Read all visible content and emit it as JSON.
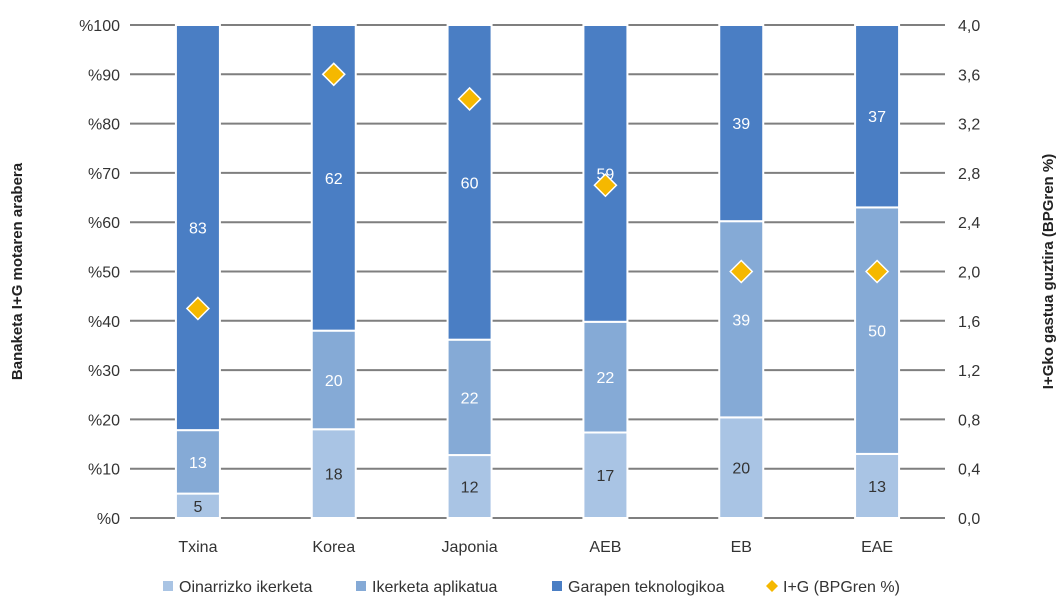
{
  "chart_data": {
    "type": "bar",
    "stacked": true,
    "categories": [
      "Txina",
      "Korea",
      "Japonia",
      "AEB",
      "EB",
      "EAE"
    ],
    "series": [
      {
        "name": "Oinarrizko ikerketa",
        "values": [
          5,
          18,
          12,
          17,
          20,
          13
        ],
        "color": "#a9c4e4"
      },
      {
        "name": "Ikerketa aplikatua",
        "values": [
          13,
          20,
          22,
          22,
          39,
          50
        ],
        "color": "#85aad6"
      },
      {
        "name": "Garapen teknologikoa",
        "values": [
          83,
          62,
          60,
          59,
          39,
          37
        ],
        "color": "#4a7ec4"
      }
    ],
    "secondary_series": {
      "name": "I+G (BPGren %)",
      "type": "scatter",
      "marker": "diamond",
      "values": [
        1.7,
        3.6,
        3.4,
        2.7,
        2.0,
        2.0
      ],
      "color": "#f5b800"
    },
    "ylabel": "Banaketa I+G motaren arabera",
    "y2label": "I+Gko gastua guztira (BPGren %)",
    "ylim": [
      0,
      100
    ],
    "y2lim": [
      0,
      4.0
    ],
    "yticks": [
      "%0",
      "%10",
      "%20",
      "%30",
      "%40",
      "%50",
      "%60",
      "%70",
      "%80",
      "%90",
      "%100"
    ],
    "y2ticks": [
      "0,0",
      "0,4",
      "0,8",
      "1,2",
      "1,6",
      "2,0",
      "2,4",
      "2,8",
      "3,2",
      "3,6",
      "4,0"
    ],
    "grid": true,
    "legend_position": "bottom",
    "legend": [
      "Oinarrizko ikerketa",
      "Ikerketa aplikatua",
      "Garapen teknologikoa",
      "I+G (BPGren %)"
    ]
  }
}
